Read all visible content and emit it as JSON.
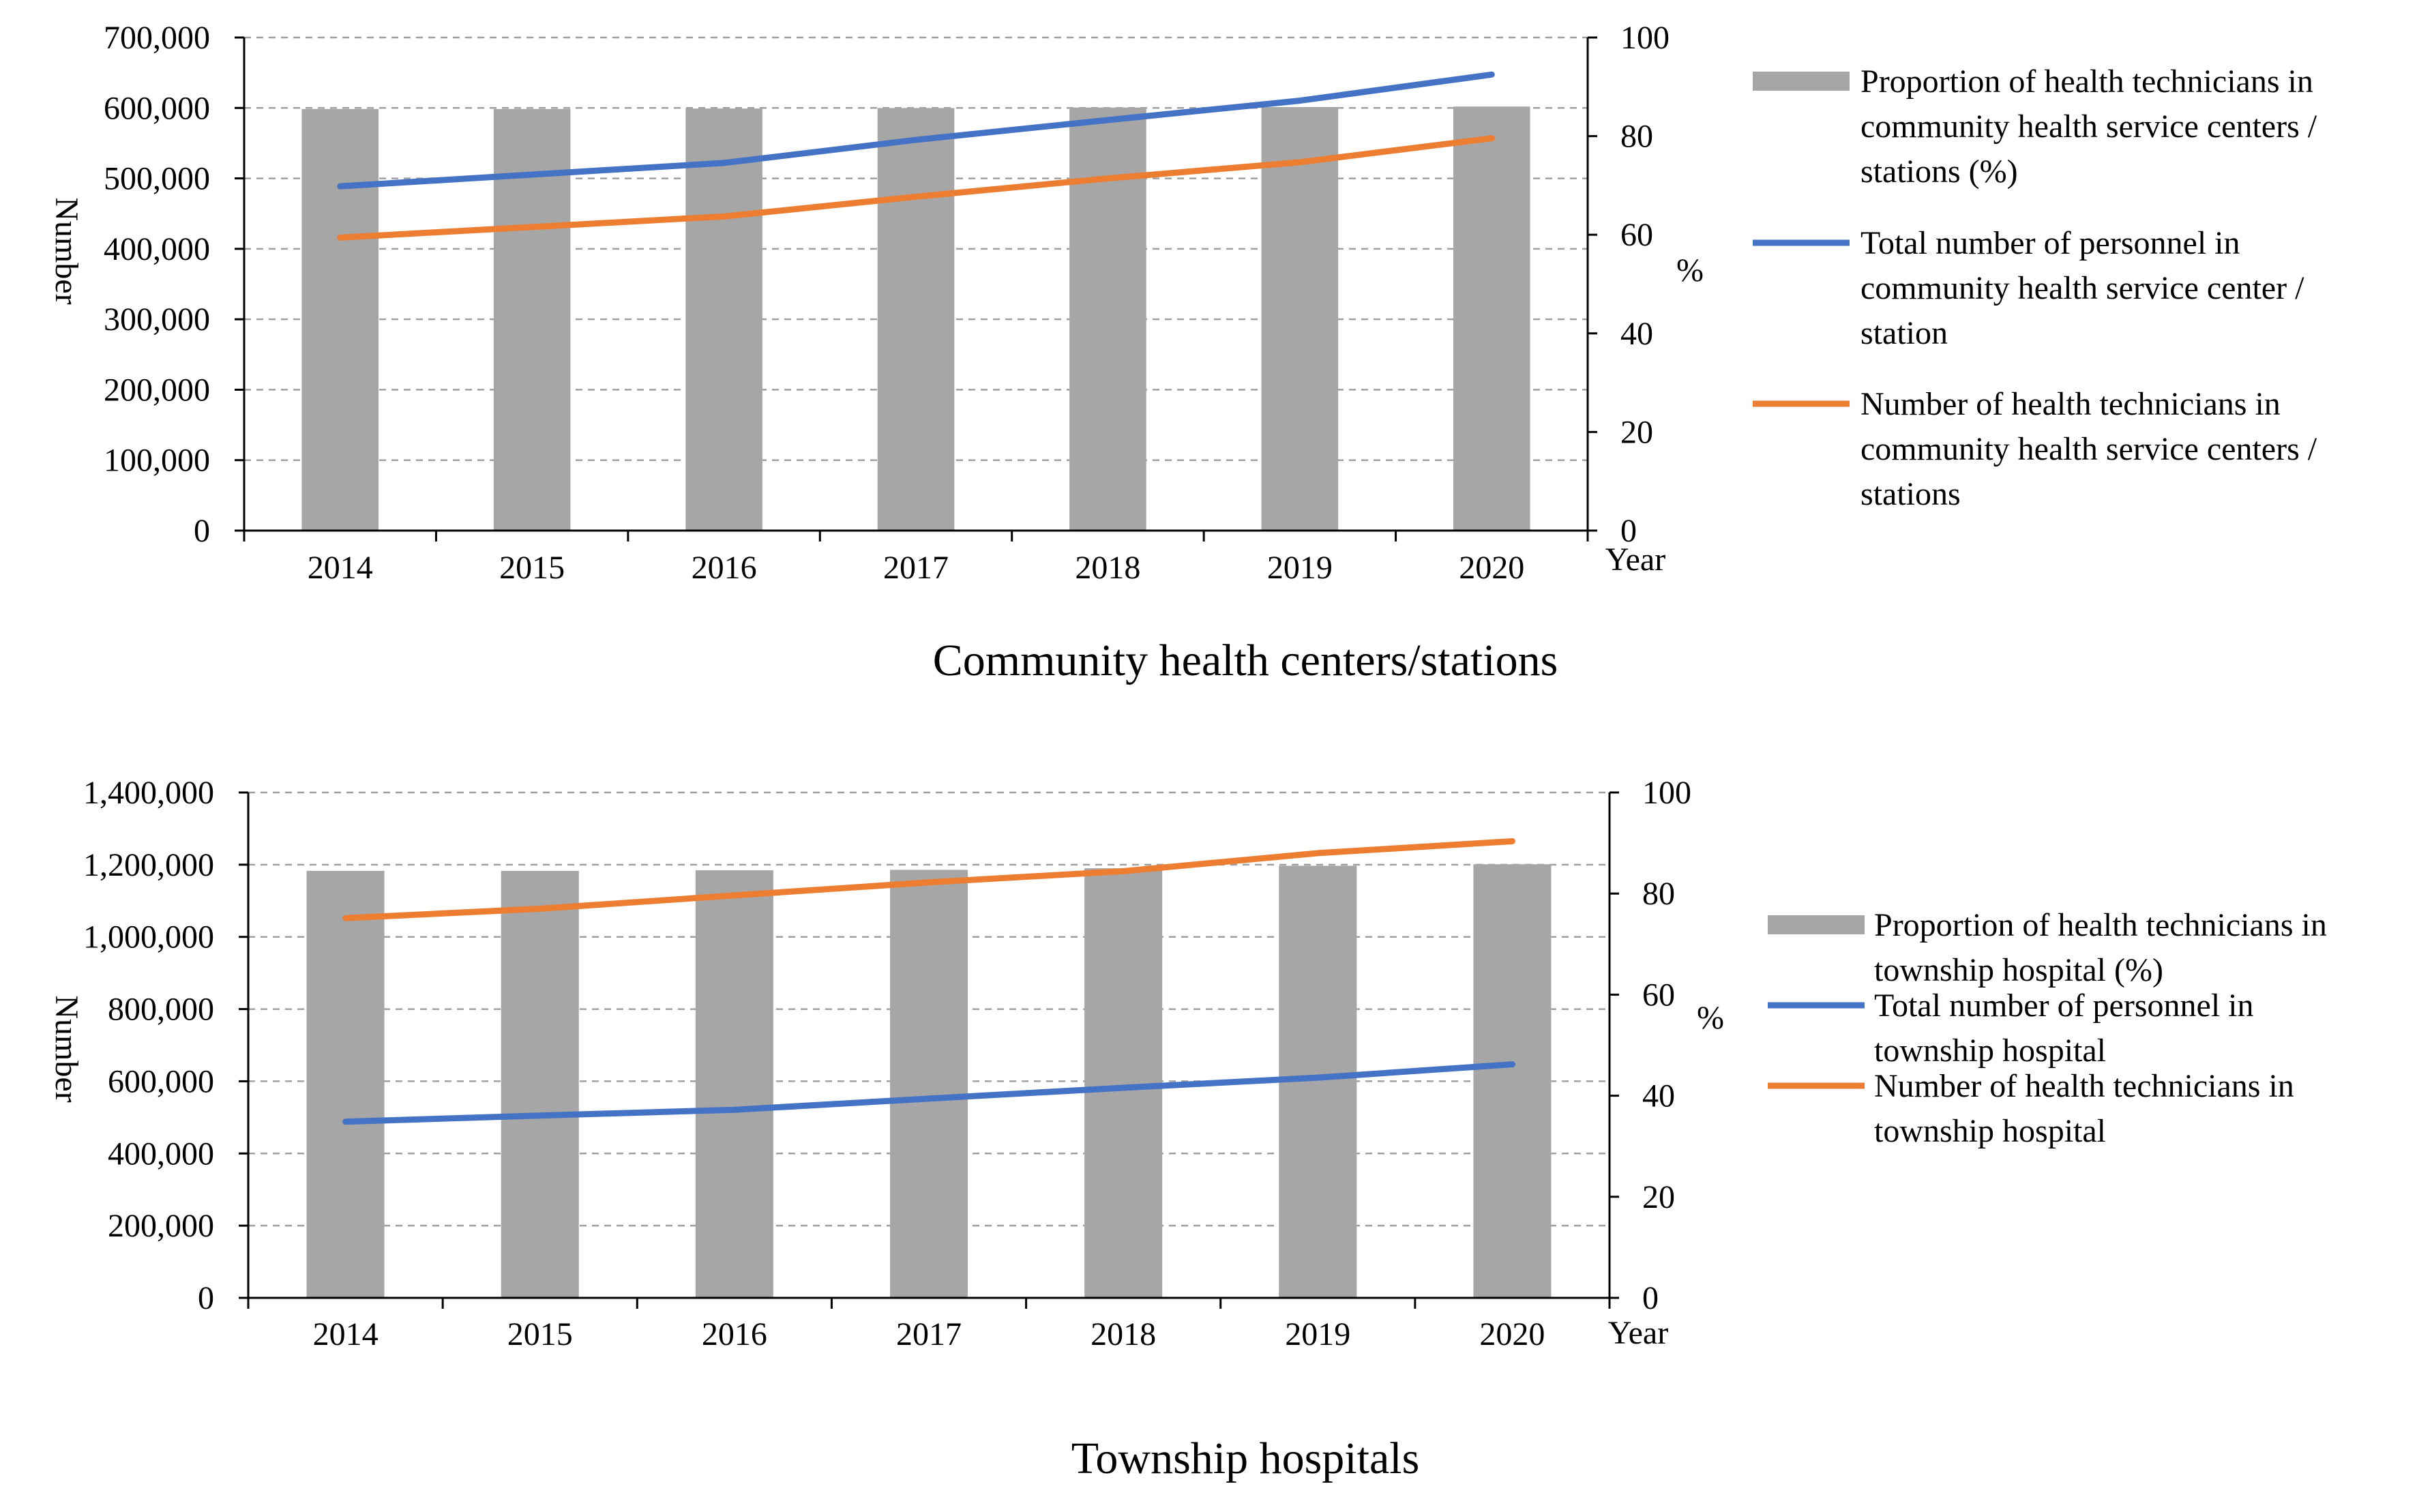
{
  "colors": {
    "bar": "#a6a6a6",
    "line_blue": "#4472c4",
    "line_orange": "#ed7d31",
    "grid": "#a0a0a0",
    "axis": "#000000"
  },
  "chart_data": [
    {
      "type": "bar+line",
      "title": "Community health centers/stations",
      "categories": [
        "2014",
        "2015",
        "2016",
        "2017",
        "2018",
        "2019",
        "2020"
      ],
      "xlabel": "Year",
      "ylabel": "Number",
      "y2label": "%",
      "ylim": [
        0,
        700000
      ],
      "y2lim": [
        0,
        100
      ],
      "y_ticks": [
        "0",
        "100,000",
        "200,000",
        "300,000",
        "400,000",
        "500,000",
        "600,000",
        "700,000"
      ],
      "y2_ticks": [
        "0",
        "20",
        "40",
        "60",
        "80",
        "100"
      ],
      "grid": true,
      "legend_position": "right",
      "series": [
        {
          "name": "Proportion of health technicians in community health service centers / stations (%)",
          "legend_lines": [
            "Proportion of health technicians in",
            "community health service centers /",
            "stations (%)"
          ],
          "kind": "bar",
          "axis": "right",
          "color": "#a6a6a6",
          "values": [
            85.5,
            85.5,
            85.6,
            85.7,
            85.8,
            85.9,
            86.0
          ]
        },
        {
          "name": "Total number of personnel in community health service center / station",
          "legend_lines": [
            "Total number of personnel in",
            "community health service center /",
            "station"
          ],
          "kind": "line",
          "axis": "left",
          "color": "#4472c4",
          "values": [
            488770,
            505446,
            521974,
            554694,
            582852,
            610345,
            647403
          ]
        },
        {
          "name": "Number of health technicians in community health service centers / stations",
          "legend_lines": [
            "Number of health technicians in",
            "community health service centers /",
            "stations"
          ],
          "kind": "line",
          "axis": "left",
          "color": "#ed7d31",
          "values": [
            416000,
            431000,
            446000,
            474000,
            500000,
            523000,
            557000
          ]
        }
      ]
    },
    {
      "type": "bar+line",
      "title": "Township hospitals",
      "categories": [
        "2014",
        "2015",
        "2016",
        "2017",
        "2018",
        "2019",
        "2020"
      ],
      "xlabel": "Year",
      "ylabel": "Number",
      "y2label": "%",
      "ylim": [
        0,
        1400000
      ],
      "y2lim": [
        0,
        100
      ],
      "y_ticks": [
        "0",
        "200,000",
        "400,000",
        "600,000",
        "800,000",
        "1,000,000",
        "1,200,000",
        "1,400,000"
      ],
      "y2_ticks": [
        "0",
        "20",
        "40",
        "60",
        "80",
        "100"
      ],
      "grid": true,
      "legend_position": "right",
      "series": [
        {
          "name": "Proportion of health technicians in township hospital (%)",
          "legend_lines": [
            "Proportion of health technicians in",
            "township hospital (%)"
          ],
          "kind": "bar",
          "axis": "right",
          "color": "#a6a6a6",
          "values": [
            84.5,
            84.5,
            84.6,
            84.7,
            85.0,
            85.5,
            85.8
          ]
        },
        {
          "name": "Total number of personnel in township hospital",
          "legend_lines": [
            "Total number of personnel in",
            "township hospital"
          ],
          "kind": "line",
          "axis": "left",
          "color": "#4472c4",
          "values": [
            488000,
            505000,
            521000,
            552000,
            582000,
            610000,
            647000
          ]
        },
        {
          "name": "Number of health technicians in township hospital",
          "legend_lines": [
            "Number of health technicians in",
            "township hospital"
          ],
          "kind": "line",
          "axis": "left",
          "color": "#ed7d31",
          "values": [
            1052000,
            1078000,
            1115000,
            1151000,
            1182000,
            1232000,
            1265000
          ]
        }
      ]
    }
  ]
}
